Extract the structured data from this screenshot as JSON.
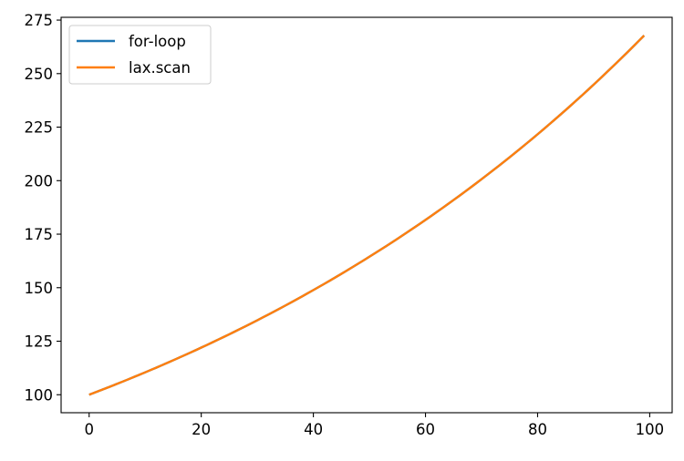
{
  "chart_data": {
    "type": "line",
    "title": "",
    "xlabel": "",
    "ylabel": "",
    "xlim": [
      -5,
      104
    ],
    "ylim": [
      91.6,
      276.3
    ],
    "x_ticks": [
      0,
      20,
      40,
      60,
      80,
      100
    ],
    "y_ticks": [
      100,
      125,
      150,
      175,
      200,
      225,
      250,
      275
    ],
    "grid": false,
    "legend_position": "top-left",
    "line_function": "100 * 1.01^t",
    "x_start": 0,
    "x_end": 99,
    "series": [
      {
        "name": "for-loop",
        "color": "#1f77b4"
      },
      {
        "name": "lax.scan",
        "color": "#ff7f0e"
      }
    ],
    "sample_points": [
      {
        "x": 0,
        "y": 100.0
      },
      {
        "x": 20,
        "y": 122.0
      },
      {
        "x": 40,
        "y": 148.9
      },
      {
        "x": 60,
        "y": 181.7
      },
      {
        "x": 80,
        "y": 221.7
      },
      {
        "x": 99,
        "y": 267.9
      }
    ]
  }
}
